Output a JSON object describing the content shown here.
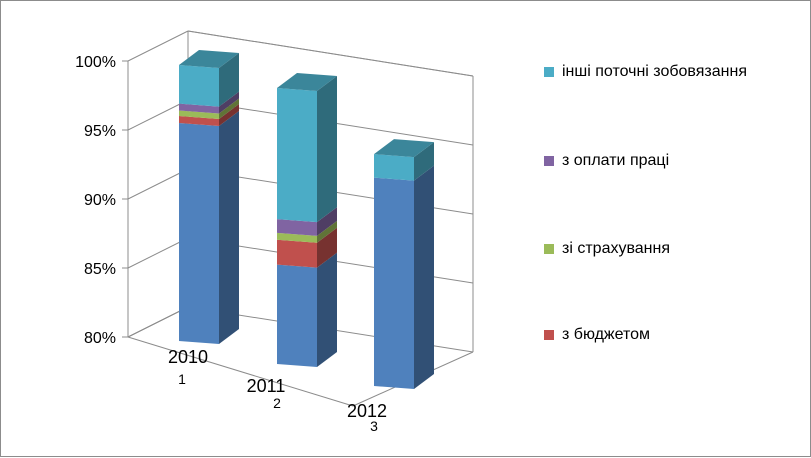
{
  "chart_data": {
    "type": "bar",
    "subtype": "stacked-percent-3d",
    "categories": [
      "2010",
      "2011",
      "2012"
    ],
    "category_numbers": [
      "1",
      "2",
      "3"
    ],
    "ylim": [
      0.8,
      1.0
    ],
    "yticks": [
      {
        "value": 0.8,
        "label": "80%"
      },
      {
        "value": 0.85,
        "label": "85%"
      },
      {
        "value": 0.9,
        "label": "90%"
      },
      {
        "value": 0.95,
        "label": "95%"
      },
      {
        "value": 1.0,
        "label": "100%"
      }
    ],
    "grid": true,
    "legend_position": "right",
    "series": [
      {
        "name": "",
        "color": "#4f81bd",
        "values": [
          0.958,
          0.872,
          0.951
        ]
      },
      {
        "name": "з бюджетом",
        "color": "#c0504d",
        "values": [
          0.005,
          0.018,
          0.0
        ]
      },
      {
        "name": "зі страхування",
        "color": "#9bbb59",
        "values": [
          0.004,
          0.005,
          0.0
        ]
      },
      {
        "name": "з оплати праці",
        "color": "#8064a2",
        "values": [
          0.005,
          0.01,
          0.0
        ]
      },
      {
        "name": "інші поточні зобовязання",
        "color": "#4bacc6",
        "values": [
          0.028,
          0.095,
          0.017
        ]
      }
    ]
  },
  "legend_order": [
    4,
    3,
    2,
    1
  ]
}
